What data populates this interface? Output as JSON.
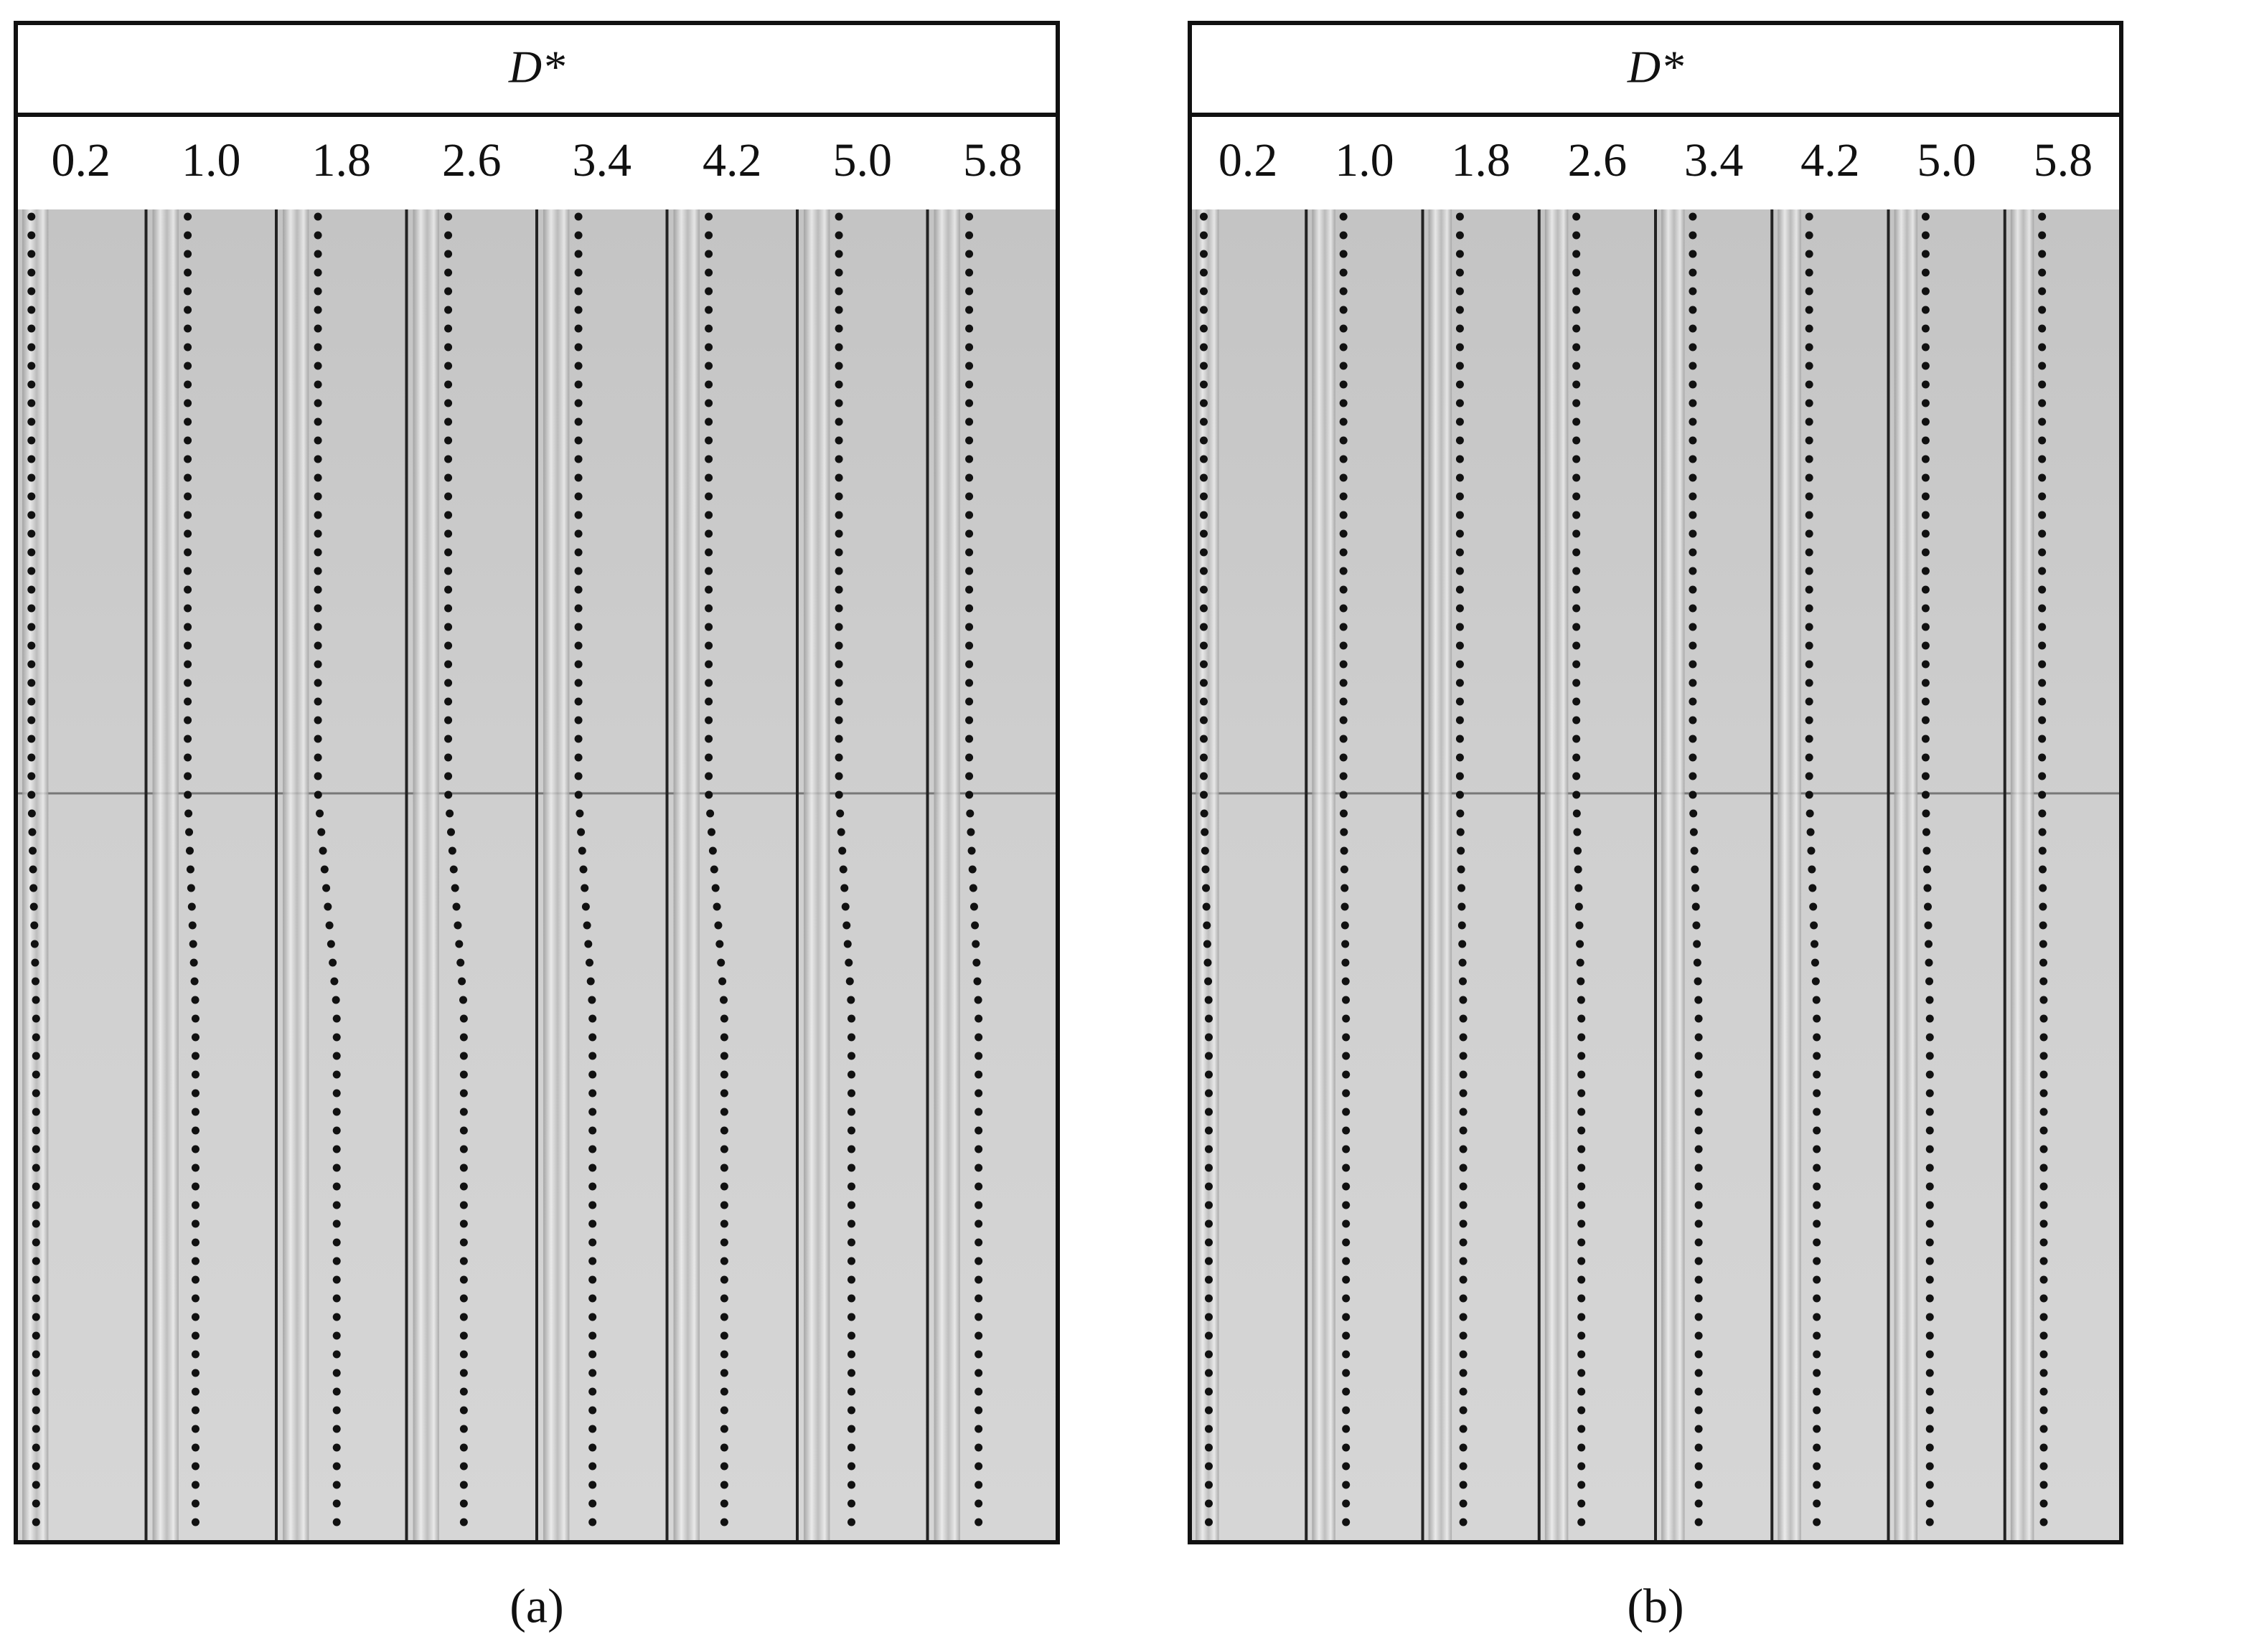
{
  "panels": [
    {
      "header": "D*",
      "columns": [
        "0.2",
        "1.0",
        "1.8",
        "2.6",
        "3.4",
        "4.2",
        "5.0",
        "5.8"
      ],
      "caption": "(a)"
    },
    {
      "header": "D*",
      "columns": [
        "0.2",
        "1.0",
        "1.8",
        "2.6",
        "3.4",
        "4.2",
        "5.0",
        "5.8"
      ],
      "caption": "(b)"
    }
  ]
}
